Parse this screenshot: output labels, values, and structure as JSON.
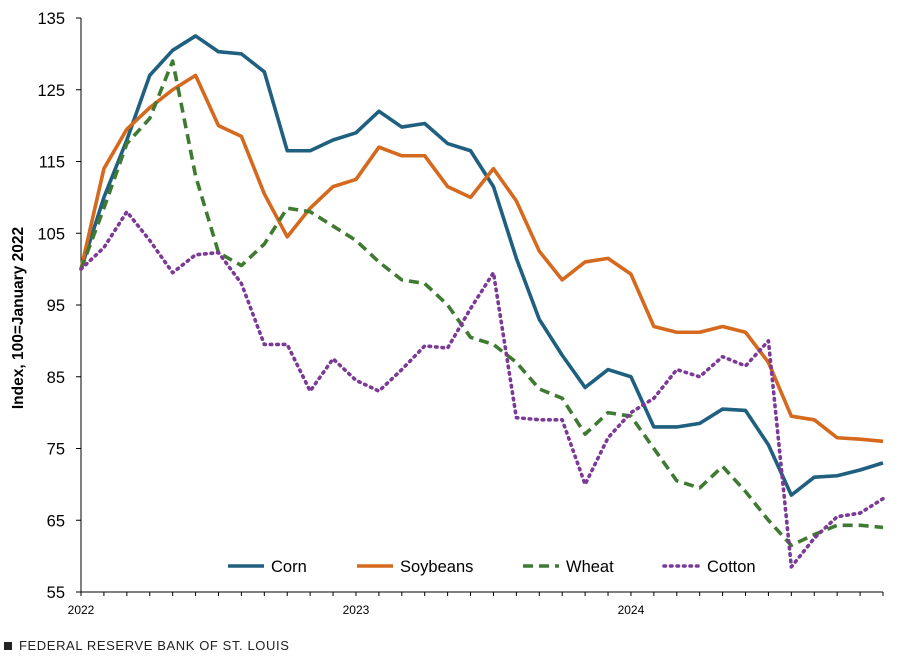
{
  "chart_data": {
    "type": "line",
    "title": "",
    "xlabel": "",
    "ylabel": "Index, 100=January 2022",
    "ylim": [
      55,
      135
    ],
    "yticks": [
      55,
      65,
      75,
      85,
      95,
      105,
      115,
      125,
      135
    ],
    "xtick_labels": [
      "2022",
      "2023",
      "2024"
    ],
    "x": [
      "2022-01",
      "2022-02",
      "2022-03",
      "2022-04",
      "2022-05",
      "2022-06",
      "2022-07",
      "2022-08",
      "2022-09",
      "2022-10",
      "2022-11",
      "2022-12",
      "2023-01",
      "2023-02",
      "2023-03",
      "2023-04",
      "2023-05",
      "2023-06",
      "2023-07",
      "2023-08",
      "2023-09",
      "2023-10",
      "2023-11",
      "2023-12",
      "2024-01",
      "2024-02",
      "2024-03",
      "2024-04",
      "2024-05",
      "2024-06",
      "2024-07",
      "2024-08",
      "2024-09",
      "2024-10",
      "2024-11",
      "2024-12"
    ],
    "legend_position": "bottom",
    "grid": false,
    "series": [
      {
        "name": "Corn",
        "color": "#1f5f7f",
        "style": "solid",
        "values": [
          100.0,
          110.0,
          118.0,
          127.0,
          130.5,
          132.5,
          130.3,
          130.0,
          127.5,
          116.5,
          116.5,
          118.0,
          119.0,
          122.0,
          119.8,
          120.3,
          117.5,
          116.5,
          111.5,
          101.5,
          93.0,
          88.0,
          83.5,
          86.0,
          85.0,
          78.0,
          78.0,
          78.5,
          80.5,
          80.3,
          75.5,
          68.5,
          71.0,
          71.2,
          72.0,
          73.0
        ]
      },
      {
        "name": "Soybeans",
        "color": "#d5691d",
        "style": "solid",
        "values": [
          100.0,
          114.0,
          119.5,
          122.5,
          125.0,
          127.0,
          120.0,
          118.5,
          110.5,
          104.5,
          108.5,
          111.5,
          112.5,
          117.0,
          115.8,
          115.8,
          111.5,
          110.0,
          114.0,
          109.5,
          102.5,
          98.5,
          101.0,
          101.5,
          99.3,
          92.0,
          91.2,
          91.2,
          92.0,
          91.2,
          87.0,
          79.5,
          79.0,
          76.5,
          76.3,
          76.0
        ]
      },
      {
        "name": "Wheat",
        "color": "#3f7a32",
        "style": "dashed",
        "values": [
          100.0,
          108.5,
          117.5,
          121.0,
          129.0,
          113.0,
          102.3,
          100.5,
          103.5,
          108.5,
          108.0,
          106.0,
          104.0,
          101.0,
          98.5,
          98.0,
          95.0,
          90.5,
          89.5,
          87.0,
          83.3,
          82.0,
          77.0,
          80.0,
          79.5,
          75.0,
          70.5,
          69.5,
          72.5,
          69.0,
          65.0,
          61.5,
          63.0,
          64.3,
          64.3,
          64.0
        ]
      },
      {
        "name": "Cotton",
        "color": "#7b3a96",
        "style": "dotted",
        "values": [
          100.0,
          103.0,
          108.0,
          104.0,
          99.5,
          102.0,
          102.3,
          98.0,
          89.5,
          89.5,
          83.0,
          87.5,
          84.5,
          83.0,
          86.0,
          89.3,
          89.0,
          94.5,
          99.5,
          79.3,
          79.0,
          79.0,
          70.0,
          76.5,
          80.0,
          82.0,
          86.0,
          85.0,
          87.8,
          86.5,
          90.0,
          58.5,
          62.5,
          65.5,
          66.0,
          68.0
        ]
      }
    ]
  },
  "footer": "FEDERAL RESERVE BANK OF ST. LOUIS"
}
